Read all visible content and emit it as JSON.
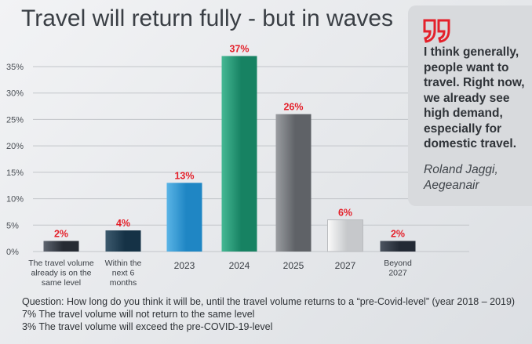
{
  "header": {
    "title": "Travel will return fully - but in waves"
  },
  "quote": {
    "text": "I think generally, people want to travel. Right now, we already see high demand, especially for domestic travel.",
    "author_line1": "Roland Jaggi,",
    "author_line2": "Aegeanair",
    "mark_color": "#e4202a"
  },
  "footnotes": {
    "question": "Question: How long do you think it will be, until the travel volume returns to a “pre-Covid-level” (year 2018 – 2019)",
    "note1": "7% The travel volume will not return to the same level",
    "note2": "3% The travel volume will exceed the pre-COVID-19-level"
  },
  "chart_data": {
    "type": "bar",
    "title": "Travel will return fully - but in waves",
    "categories": [
      [
        "The travel volume",
        "already is on the",
        "same level"
      ],
      [
        "Within the",
        "next 6",
        "months"
      ],
      [
        "2023"
      ],
      [
        "2024"
      ],
      [
        "2025"
      ],
      [
        "2027"
      ],
      [
        "Beyond",
        "2027"
      ]
    ],
    "values": [
      2,
      4,
      13,
      37,
      26,
      6,
      2
    ],
    "value_labels": [
      "2%",
      "4%",
      "13%",
      "37%",
      "26%",
      "6%",
      "2%"
    ],
    "bar_colors": [
      [
        "#5e6570",
        "#262b33"
      ],
      [
        "#3d5a6e",
        "#153246"
      ],
      [
        "#5ab4e6",
        "#1f86c4"
      ],
      [
        "#45b894",
        "#178262"
      ],
      [
        "#9a9da1",
        "#5f6267"
      ],
      [
        "#fafafa",
        "#c6c8cb"
      ],
      [
        "#4c5460",
        "#232a35"
      ]
    ],
    "yticks": [
      "0%",
      "5%",
      "10%",
      "15%",
      "20%",
      "25%",
      "30%",
      "35%"
    ],
    "ylim": [
      0,
      38
    ],
    "grid": true,
    "value_label_color": "#e4202a"
  }
}
